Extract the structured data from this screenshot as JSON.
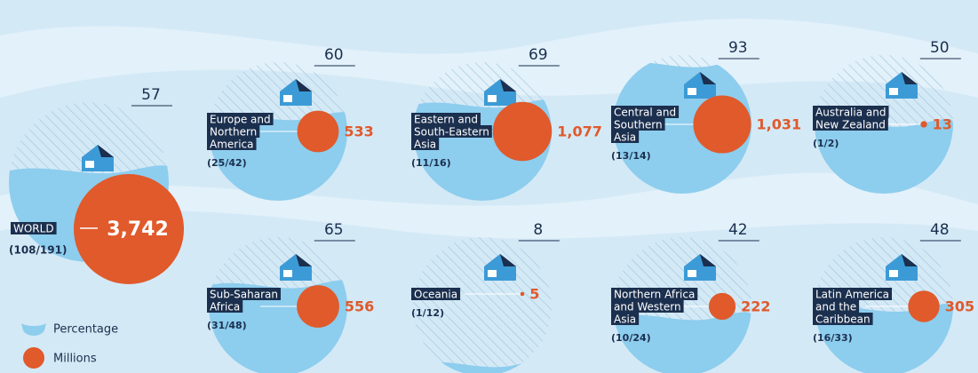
{
  "chart_data": {
    "type": "bubble",
    "legend": [
      "Percentage",
      "Millions"
    ],
    "water_color": "#8dcdee",
    "dot_color": "#e05a2b",
    "label_color": "#1b2f4e",
    "regions": [
      {
        "name_lines": [
          "WORLD"
        ],
        "percentage": 57,
        "millions": 3742,
        "millions_label": "3,742",
        "ratio": "(108/191)"
      },
      {
        "name_lines": [
          "Europe and",
          "Northern",
          "America"
        ],
        "percentage": 60,
        "millions": 533,
        "millions_label": "533",
        "ratio": "(25/42)"
      },
      {
        "name_lines": [
          "Eastern and",
          "South-Eastern",
          "Asia"
        ],
        "percentage": 69,
        "millions": 1077,
        "millions_label": "1,077",
        "ratio": "(11/16)"
      },
      {
        "name_lines": [
          "Central and",
          "Southern",
          "Asia"
        ],
        "percentage": 93,
        "millions": 1031,
        "millions_label": "1,031",
        "ratio": "(13/14)"
      },
      {
        "name_lines": [
          "Australia and",
          "New Zealand"
        ],
        "percentage": 50,
        "millions": 13,
        "millions_label": "13",
        "ratio": "(1/2)"
      },
      {
        "name_lines": [
          "Sub-Saharan",
          "Africa"
        ],
        "percentage": 65,
        "millions": 556,
        "millions_label": "556",
        "ratio": "(31/48)"
      },
      {
        "name_lines": [
          "Oceania"
        ],
        "percentage": 8,
        "millions": 5,
        "millions_label": "5",
        "ratio": "(1/12)"
      },
      {
        "name_lines": [
          "Northern Africa",
          "and Western",
          "Asia"
        ],
        "percentage": 42,
        "millions": 222,
        "millions_label": "222",
        "ratio": "(10/24)"
      },
      {
        "name_lines": [
          "Latin America",
          "and the",
          "Caribbean"
        ],
        "percentage": 48,
        "millions": 305,
        "millions_label": "305",
        "ratio": "(16/33)"
      }
    ]
  }
}
